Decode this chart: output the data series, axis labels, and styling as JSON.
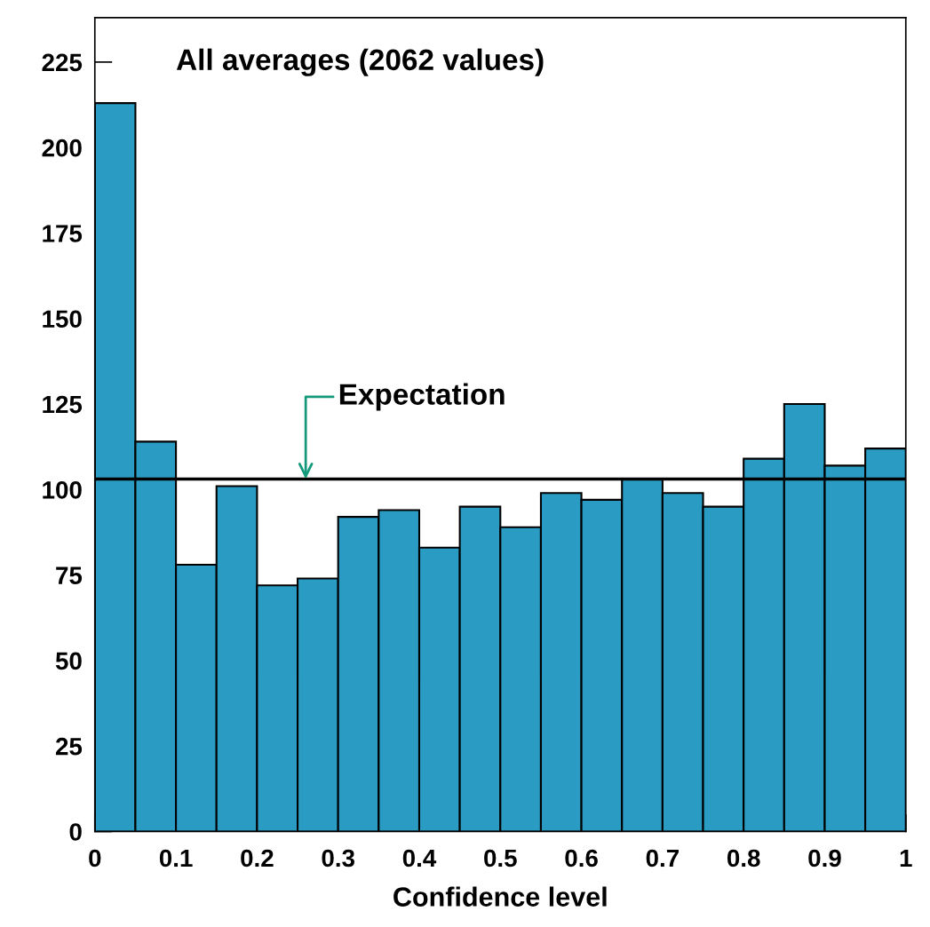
{
  "chart_data": {
    "type": "histogram",
    "title": "All averages (2062 values)",
    "xlabel": "Confidence level",
    "bins": [
      0,
      0.05,
      0.1,
      0.15,
      0.2,
      0.25,
      0.3,
      0.35,
      0.4,
      0.45,
      0.5,
      0.55,
      0.6,
      0.65,
      0.7,
      0.75,
      0.8,
      0.85,
      0.9,
      0.95,
      1
    ],
    "values": [
      213,
      114,
      78,
      101,
      72,
      74,
      92,
      94,
      83,
      95,
      89,
      99,
      97,
      103,
      99,
      95,
      109,
      125,
      107,
      112
    ],
    "color": "#2a9bc3",
    "xlim": [
      0,
      1
    ],
    "ylim": [
      0,
      238
    ],
    "xticks": [
      0,
      {
        "value": 0.1,
        "label": "0.1"
      },
      {
        "value": 0.2,
        "label": "0.2"
      },
      {
        "value": 0.3,
        "label": "0.3"
      },
      {
        "value": 0.4,
        "label": "0.4"
      },
      {
        "value": 0.5,
        "label": "0.5"
      },
      {
        "value": 0.6,
        "label": "0.6"
      },
      {
        "value": 0.7,
        "label": "0.7"
      },
      {
        "value": 0.8,
        "label": "0.8"
      },
      {
        "value": 0.9,
        "label": "0.9"
      },
      1
    ],
    "yticks": [
      0,
      25,
      50,
      75,
      100,
      125,
      150,
      175,
      200,
      225
    ],
    "ref_lines": [
      {
        "axis": "y",
        "value": 103.1,
        "color": "#000000"
      }
    ],
    "annotations": [
      {
        "text": "Expectation",
        "x": 0.26,
        "y": 103.1
      }
    ],
    "grid": false,
    "legend": false
  }
}
